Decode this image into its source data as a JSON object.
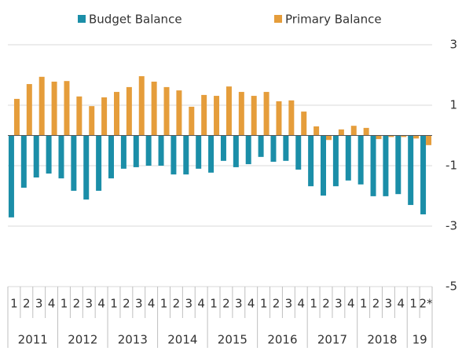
{
  "chart_data": {
    "type": "bar",
    "categories": [
      "1",
      "2",
      "3",
      "4",
      "1",
      "2",
      "3",
      "4",
      "1",
      "2",
      "3",
      "4",
      "1",
      "2",
      "3",
      "4",
      "1",
      "2",
      "3",
      "4",
      "1",
      "2",
      "3",
      "4",
      "1",
      "2",
      "3",
      "4",
      "1",
      "2",
      "3",
      "4",
      "1",
      "2*"
    ],
    "years": [
      "2011",
      "2012",
      "2013",
      "2014",
      "2015",
      "2016",
      "2017",
      "2018",
      "19"
    ],
    "series": [
      {
        "name": "Budget Balance",
        "color": "#1b8ea8",
        "values": [
          -2.71,
          -1.73,
          -1.39,
          -1.26,
          -1.42,
          -1.83,
          -2.12,
          -1.83,
          -1.42,
          -1.1,
          -1.05,
          -1.0,
          -1.0,
          -1.29,
          -1.29,
          -1.1,
          -1.23,
          -0.84,
          -1.05,
          -0.95,
          -0.71,
          -0.87,
          -0.84,
          -1.13,
          -1.68,
          -1.99,
          -1.68,
          -1.49,
          -1.62,
          -2.01,
          -2.01,
          -1.94,
          -2.3,
          -2.61
        ]
      },
      {
        "name": "Primary Balance",
        "color": "#e59d3b",
        "values": [
          1.21,
          1.7,
          1.94,
          1.78,
          1.8,
          1.29,
          0.97,
          1.26,
          1.44,
          1.6,
          1.96,
          1.78,
          1.6,
          1.49,
          0.95,
          1.34,
          1.31,
          1.62,
          1.44,
          1.31,
          1.44,
          1.13,
          1.16,
          0.79,
          0.3,
          -0.15,
          0.2,
          0.32,
          0.25,
          -0.12,
          -0.05,
          -0.05,
          -0.1,
          -0.32
        ]
      }
    ],
    "ylim": [
      -5,
      3
    ],
    "yticks": [
      -5,
      -3,
      -1,
      1,
      3
    ],
    "grid": true
  }
}
